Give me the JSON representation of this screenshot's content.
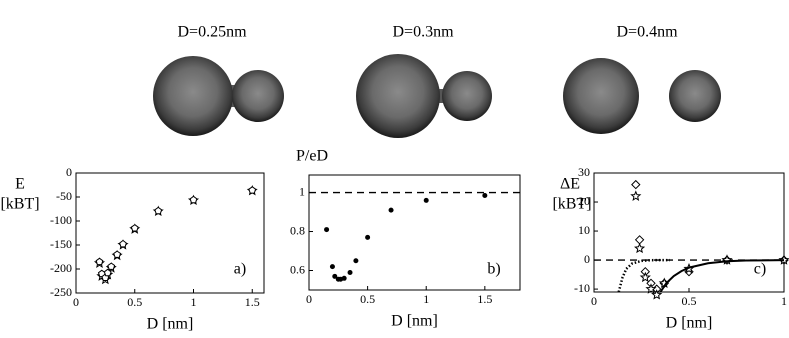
{
  "images": [
    {
      "label": "D=0.25nm"
    },
    {
      "label": "D=0.3nm"
    },
    {
      "label": "D=0.4nm"
    }
  ],
  "chart_data": [
    {
      "type": "scatter",
      "ylabel": "E",
      "ylabel_unit": "[kBT]",
      "xlabel": "D [nm]",
      "panel": "a)",
      "xlim": [
        0,
        1.6
      ],
      "xticks": [
        0,
        0.5,
        1,
        1.5
      ],
      "ylim": [
        -250,
        0
      ],
      "yticks": [
        0,
        -50,
        -100,
        -150,
        -200,
        -250
      ],
      "series": [
        {
          "marker": "star",
          "color": "#000000",
          "x": [
            0.2,
            0.22,
            0.25,
            0.27,
            0.3,
            0.35,
            0.4,
            0.5,
            0.7,
            1.0,
            1.5
          ],
          "values": [
            -188,
            -215,
            -222,
            -212,
            -198,
            -172,
            -150,
            -117,
            -80,
            -57,
            -37
          ]
        },
        {
          "marker": "pentagon",
          "color": "#000000",
          "x": [
            0.2,
            0.22,
            0.25,
            0.27,
            0.3,
            0.35,
            0.4,
            0.5,
            0.7,
            1.0,
            1.5
          ],
          "values": [
            -185,
            -210,
            -218,
            -208,
            -195,
            -170,
            -148,
            -115,
            -79,
            -56,
            -36
          ]
        }
      ]
    },
    {
      "type": "scatter",
      "ylabel": "P/eD",
      "xlabel": "D [nm]",
      "panel": "b)",
      "xlim": [
        0,
        1.8
      ],
      "xticks": [
        0,
        0.5,
        1,
        1.5
      ],
      "ylim": [
        0.5,
        1.09
      ],
      "yticks": [
        0.6,
        0.8,
        1
      ],
      "reference_line": 1,
      "series": [
        {
          "marker": "circle",
          "color": "#000000",
          "x": [
            0.15,
            0.2,
            0.22,
            0.25,
            0.27,
            0.3,
            0.35,
            0.4,
            0.5,
            0.7,
            1.0,
            1.5
          ],
          "values": [
            0.81,
            0.62,
            0.57,
            0.555,
            0.555,
            0.56,
            0.59,
            0.65,
            0.77,
            0.91,
            0.96,
            0.985
          ]
        }
      ]
    },
    {
      "type": "scatter",
      "ylabel": "ΔE",
      "ylabel_unit": "[kBT]",
      "xlabel": "D [nm]",
      "panel": "c)",
      "xlim": [
        0,
        1
      ],
      "xticks": [
        0,
        0.5,
        1
      ],
      "ylim": [
        -11,
        30
      ],
      "yticks": [
        -10,
        0,
        10,
        20,
        30
      ],
      "reference_line": 0,
      "series": [
        {
          "marker": "diamond",
          "color": "#000000",
          "x": [
            0.22,
            0.24,
            0.27,
            0.3,
            0.33,
            0.37,
            0.5,
            0.7,
            1.0
          ],
          "values": [
            26,
            7,
            -4,
            -8,
            -10,
            -8,
            -4,
            0,
            0
          ]
        },
        {
          "marker": "star",
          "color": "#000000",
          "x": [
            0.22,
            0.24,
            0.27,
            0.3,
            0.33,
            0.37,
            0.5,
            0.7,
            1.0
          ],
          "values": [
            22,
            4,
            -6,
            -10,
            -12,
            -8,
            -3,
            0,
            0
          ]
        },
        {
          "marker": "solid",
          "color": "#000000",
          "x": [
            0.35,
            0.38,
            0.42,
            0.46,
            0.5,
            0.6,
            0.7,
            0.8,
            1.0
          ],
          "values": [
            -11,
            -8,
            -5.5,
            -3.8,
            -2.6,
            -1.1,
            -0.4,
            -0.15,
            0
          ]
        },
        {
          "marker": "dotted",
          "color": "#000000",
          "x": [
            0.13,
            0.15,
            0.17,
            0.2,
            0.25,
            0.3,
            0.4
          ],
          "values": [
            -11,
            -6,
            -3,
            -1.2,
            -0.3,
            -0.05,
            0
          ]
        }
      ]
    }
  ]
}
